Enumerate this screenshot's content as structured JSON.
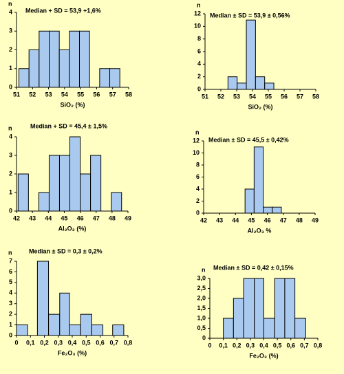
{
  "chart_data": [
    {
      "type": "histogram",
      "title": "Median + SD = 53,9 +1,6%",
      "ylabel": "n",
      "xlabel": "SiO₂ (%)",
      "color": "#a9c9ee",
      "bins": [
        51.15,
        51.78,
        52.41,
        53.04,
        53.67,
        54.3,
        54.93,
        55.56,
        56.19,
        56.82,
        57.45
      ],
      "values": [
        1,
        2,
        3,
        3,
        2,
        3,
        3,
        0,
        1,
        1
      ],
      "xlim": [
        51,
        58
      ],
      "xticks": [
        51,
        52,
        53,
        54,
        55,
        56,
        57,
        58
      ],
      "ylim": [
        0,
        4
      ],
      "yticks": [
        0,
        1,
        2,
        3,
        4
      ]
    },
    {
      "type": "histogram",
      "title": "Median ± SD  =  53,9  ±  0,56%",
      "ylabel": "n",
      "xlabel": "SiO₂ (%)",
      "color": "#a9c9ee",
      "bins": [
        52.45,
        53.03,
        53.61,
        54.19,
        54.77,
        55.35
      ],
      "values": [
        2,
        1,
        11,
        2,
        1
      ],
      "xlim": [
        51,
        58
      ],
      "xticks": [
        51,
        52,
        53,
        54,
        55,
        56,
        57,
        58
      ],
      "ylim": [
        0,
        12
      ],
      "yticks": [
        0,
        2,
        4,
        6,
        8,
        10,
        12
      ]
    },
    {
      "type": "histogram",
      "title": "Median +  SD = 45,4  ±  1,5%",
      "ylabel": "n",
      "xlabel": "Al₂O₃ (%)",
      "color": "#a9c9ee",
      "bins": [
        42.1,
        42.75,
        43.4,
        44.05,
        44.7,
        45.35,
        46.0,
        46.65,
        47.3,
        47.95,
        48.6
      ],
      "values": [
        2,
        0,
        1,
        3,
        3,
        4,
        2,
        3,
        0,
        1
      ],
      "xlim": [
        42,
        49
      ],
      "xticks": [
        42,
        43,
        44,
        45,
        46,
        47,
        48,
        49
      ],
      "ylim": [
        0,
        4
      ],
      "yticks": [
        0,
        1,
        2,
        3,
        4
      ]
    },
    {
      "type": "histogram",
      "title": "Median ±  SD =  45,5  ±  0,42%",
      "ylabel": "n",
      "xlabel": "Al₂O₃  %",
      "color": "#a9c9ee",
      "bins": [
        44.6,
        45.17,
        45.74,
        46.31,
        46.88
      ],
      "values": [
        4,
        11,
        1,
        1
      ],
      "xlim": [
        42,
        49
      ],
      "xticks": [
        42,
        43,
        44,
        45,
        46,
        47,
        48,
        49
      ],
      "ylim": [
        0,
        12
      ],
      "yticks": [
        0,
        2,
        4,
        6,
        8,
        10,
        12
      ]
    },
    {
      "type": "histogram",
      "title": "Median  ±  SD  =  0,3  ± 0,2%",
      "ylabel": "n",
      "xlabel": "Fe₂O₃  (%)",
      "color": "#a9c9ee",
      "bins": [
        0,
        0.08,
        0.15,
        0.23,
        0.31,
        0.38,
        0.46,
        0.54,
        0.62,
        0.69,
        0.77
      ],
      "values": [
        1,
        0,
        7,
        2,
        4,
        1,
        2,
        1,
        0,
        1
      ],
      "xlim": [
        0,
        0.8
      ],
      "xticks": [
        0,
        {
          "value": 0.1,
          "label": "0,1"
        },
        {
          "value": 0.2,
          "label": "0,2"
        },
        {
          "value": 0.3,
          "label": "0,3"
        },
        {
          "value": 0.4,
          "label": "0,4"
        },
        {
          "value": 0.5,
          "label": "0,5"
        },
        {
          "value": 0.6,
          "label": "0,6"
        },
        {
          "value": 0.7,
          "label": "0,7"
        },
        {
          "value": 0.8,
          "label": "0,8"
        }
      ],
      "ylim": [
        0,
        7
      ],
      "yticks": [
        0,
        1,
        2,
        3,
        4,
        5,
        6,
        7
      ]
    },
    {
      "type": "histogram",
      "title": "Median ± SD = 0,42  ± 0,15%",
      "ylabel": "n",
      "xlabel": "Fe₂O₃  (%)",
      "color": "#a9c9ee",
      "bins": [
        0.1,
        0.175,
        0.25,
        0.33,
        0.4,
        0.48,
        0.555,
        0.63,
        0.71
      ],
      "values": [
        1,
        2,
        3,
        3,
        1,
        3,
        3,
        1
      ],
      "xlim": [
        0,
        0.8
      ],
      "xticks": [
        0,
        {
          "value": 0.1,
          "label": "0,1"
        },
        {
          "value": 0.2,
          "label": "0,2"
        },
        {
          "value": 0.3,
          "label": "0,3"
        },
        {
          "value": 0.4,
          "label": "0,4"
        },
        {
          "value": 0.5,
          "label": "0,5"
        },
        {
          "value": 0.6,
          "label": "0,6"
        },
        {
          "value": 0.7,
          "label": "0,7"
        },
        {
          "value": 0.8,
          "label": "0,8"
        }
      ],
      "ylim": [
        0,
        3
      ],
      "yticks": [
        0,
        {
          "value": 0.5,
          "label": "0,5"
        },
        {
          "value": 1,
          "label": "1,0"
        },
        {
          "value": 1.5,
          "label": "1,5"
        },
        {
          "value": 2,
          "label": "2,0"
        },
        {
          "value": 2.5,
          "label": "2,5"
        },
        {
          "value": 3,
          "label": "3,0"
        }
      ]
    }
  ]
}
